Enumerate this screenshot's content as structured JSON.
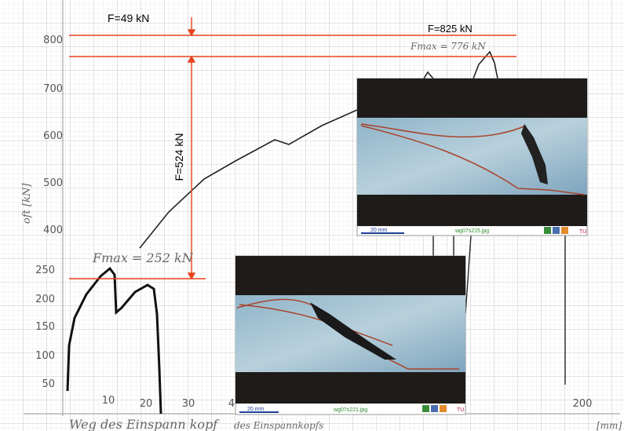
{
  "annotations": {
    "f_49": "F=49 kN",
    "f_825": "F=825 kN",
    "fmax_776": "Fmax = 776 kN",
    "f_524": "F=524 kN",
    "fmax_252": "Fmax = 252 kN"
  },
  "upper_axis": {
    "label": "oft [kN]",
    "ticks": [
      "800",
      "700",
      "600",
      "500",
      "400"
    ]
  },
  "lower_axis": {
    "ticks": [
      "250",
      "200",
      "150",
      "100",
      "50"
    ]
  },
  "x_axis": {
    "ticks": [
      "10",
      "20",
      "30",
      "4",
      "200"
    ],
    "label": "Weg des Einspann kopf",
    "label_print": "des Einspannkopfs",
    "unit": "[mm]"
  },
  "photos": [
    {
      "scale": "20 mm",
      "file": "wg07s215.jpg",
      "logo": "TU"
    },
    {
      "scale": "20 mm",
      "file": "wg07s221.jpg",
      "logo": "TU"
    }
  ]
}
